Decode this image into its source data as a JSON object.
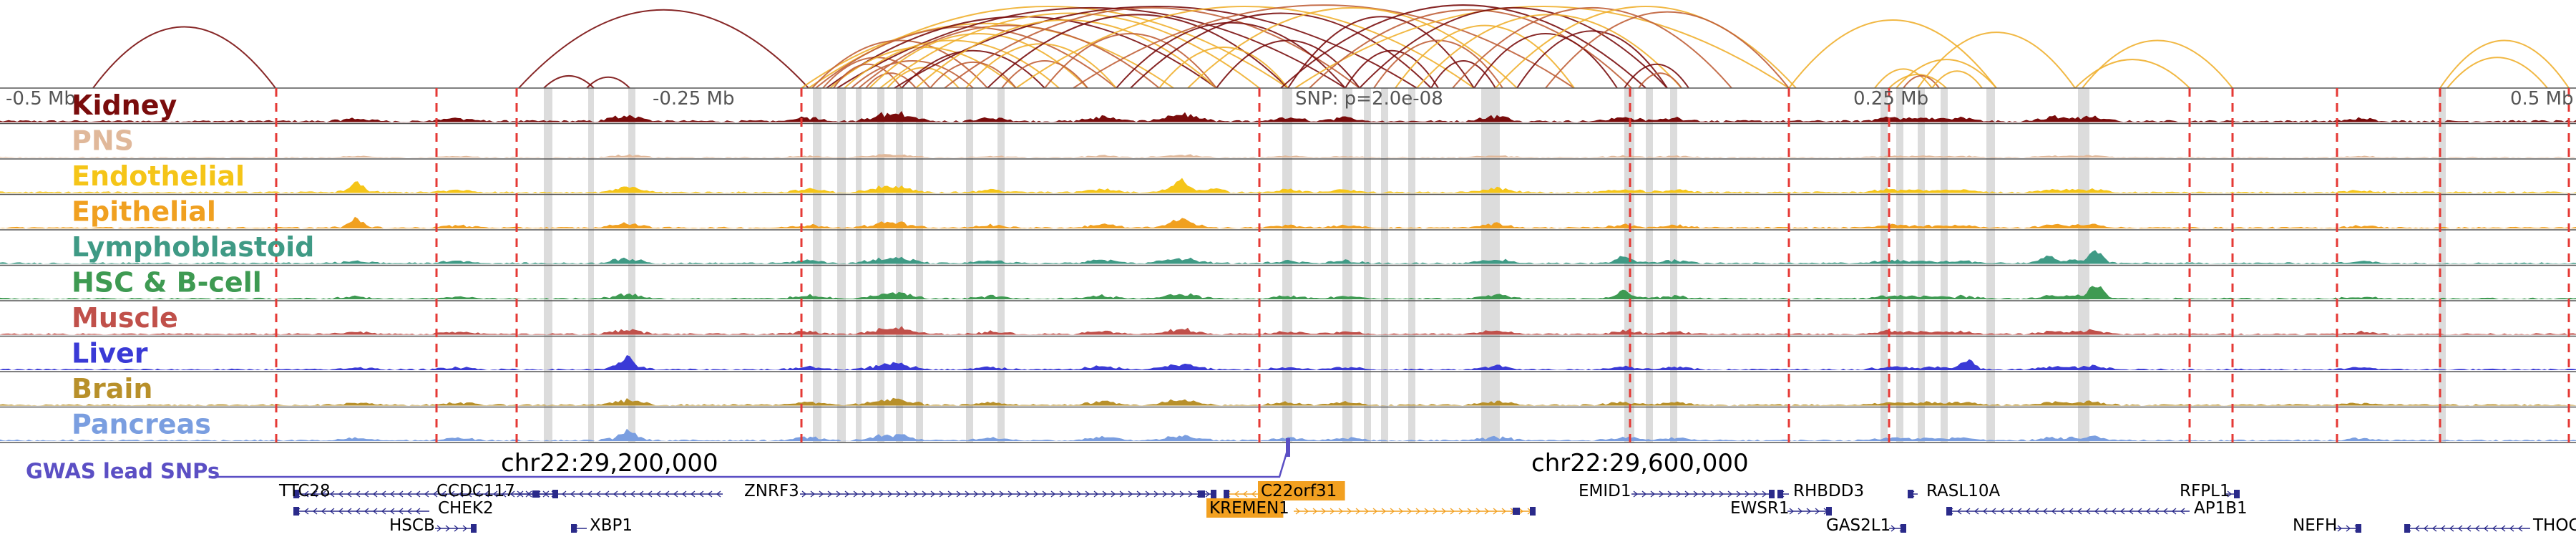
{
  "ruler": {
    "labels": [
      "-0.5 Mb",
      "-0.25 Mb",
      "0.25 Mb",
      "0.5 Mb"
    ],
    "snp_label": "SNP: p=2.0e-08"
  },
  "colors": {
    "divider": "#555555",
    "boundary": "#e53935",
    "highlight": "#d0d0d0",
    "gwas": "#5b4fc4",
    "gene": "#2a2a8a",
    "gene_highlight": "#f2a020",
    "arc_dark": "#7a0f0f",
    "arc_mid": "#c0603a",
    "arc_light": "#f0b030"
  },
  "tracks": [
    {
      "name": "Kidney",
      "color": "#7a0c0c",
      "signal": "kidney-signal"
    },
    {
      "name": "PNS",
      "color": "#e0b89a",
      "signal": "pns-signal"
    },
    {
      "name": "Endothelial",
      "color": "#f5c518",
      "signal": "endothelial-signal"
    },
    {
      "name": "Epithelial",
      "color": "#f0a020",
      "signal": "epithelial-signal"
    },
    {
      "name": "Lymphoblastoid",
      "color": "#3f9a85",
      "signal": "lymphoblastoid-signal"
    },
    {
      "name": "HSC & B-cell",
      "color": "#3e9a52",
      "signal": "hsc-bcell-signal"
    },
    {
      "name": "Muscle",
      "color": "#c0504a",
      "signal": "muscle-signal"
    },
    {
      "name": "Liver",
      "color": "#3a3ad6",
      "signal": "liver-signal"
    },
    {
      "name": "Brain",
      "color": "#b8902a",
      "signal": "brain-signal"
    },
    {
      "name": "Pancreas",
      "color": "#7a9ee0",
      "signal": "pancreas-signal"
    }
  ],
  "coords": [
    "chr22:29,200,000",
    "chr22:29,600,000"
  ],
  "gwas": {
    "label": "GWAS lead SNPs"
  },
  "genes": [
    {
      "name": "TTC28",
      "highlight": false
    },
    {
      "name": "CCDC117",
      "highlight": false
    },
    {
      "name": "CHEK2",
      "highlight": false
    },
    {
      "name": "HSCB",
      "highlight": false
    },
    {
      "name": "XBP1",
      "highlight": false
    },
    {
      "name": "ZNRF3",
      "highlight": false
    },
    {
      "name": "C22orf31",
      "highlight": true
    },
    {
      "name": "KREMEN1",
      "highlight": true
    },
    {
      "name": "EMID1",
      "highlight": false
    },
    {
      "name": "RHBDD3",
      "highlight": false
    },
    {
      "name": "EWSR1",
      "highlight": false
    },
    {
      "name": "GAS2L1",
      "highlight": false
    },
    {
      "name": "RASL10A",
      "highlight": false
    },
    {
      "name": "RFPL1",
      "highlight": false
    },
    {
      "name": "AP1B1",
      "highlight": false
    },
    {
      "name": "NEFH",
      "highlight": false
    },
    {
      "name": "THOC",
      "highlight": false
    }
  ]
}
